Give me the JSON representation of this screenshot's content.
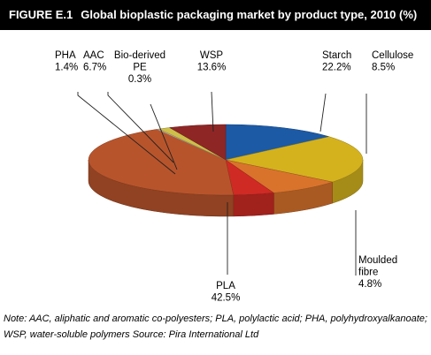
{
  "figure": {
    "label": "FIGURE E.1",
    "title": "Global bioplastic packaging market by product type, 2010 (%)"
  },
  "chart_data": {
    "type": "pie",
    "title": "Global bioplastic packaging market by product type, 2010 (%)",
    "slices": [
      {
        "key": "wsp",
        "label_lines": [
          "WSP"
        ],
        "value": 13.6,
        "value_text": "13.6%",
        "color": "#1c5aa6"
      },
      {
        "key": "starch",
        "label_lines": [
          "Starch"
        ],
        "value": 22.2,
        "value_text": "22.2%",
        "color": "#d4b21e"
      },
      {
        "key": "cellulose",
        "label_lines": [
          "Cellulose"
        ],
        "value": 8.5,
        "value_text": "8.5%",
        "color": "#d9732c"
      },
      {
        "key": "moulded",
        "label_lines": [
          "Moulded",
          "fibre"
        ],
        "value": 4.8,
        "value_text": "4.8%",
        "color": "#cf2a24"
      },
      {
        "key": "pla",
        "label_lines": [
          "PLA"
        ],
        "value": 42.5,
        "value_text": "42.5%",
        "color": "#b8542b"
      },
      {
        "key": "pe",
        "label_lines": [
          "Bio-derived",
          "PE"
        ],
        "value": 0.3,
        "value_text": "0.3%",
        "color": "#c4a6a6"
      },
      {
        "key": "pha",
        "label_lines": [
          "PHA"
        ],
        "value": 1.4,
        "value_text": "1.4%",
        "color": "#cdbf4a"
      },
      {
        "key": "aac",
        "label_lines": [
          "AAC"
        ],
        "value": 6.7,
        "value_text": "6.7%",
        "color": "#8f2626"
      }
    ]
  },
  "note": "Note: AAC, aliphatic and aromatic co-polyesters; PLA, polylactic acid; PHA, polyhydroxyalkanoate; WSP, water-soluble polymers   Source: Pira International Ltd"
}
